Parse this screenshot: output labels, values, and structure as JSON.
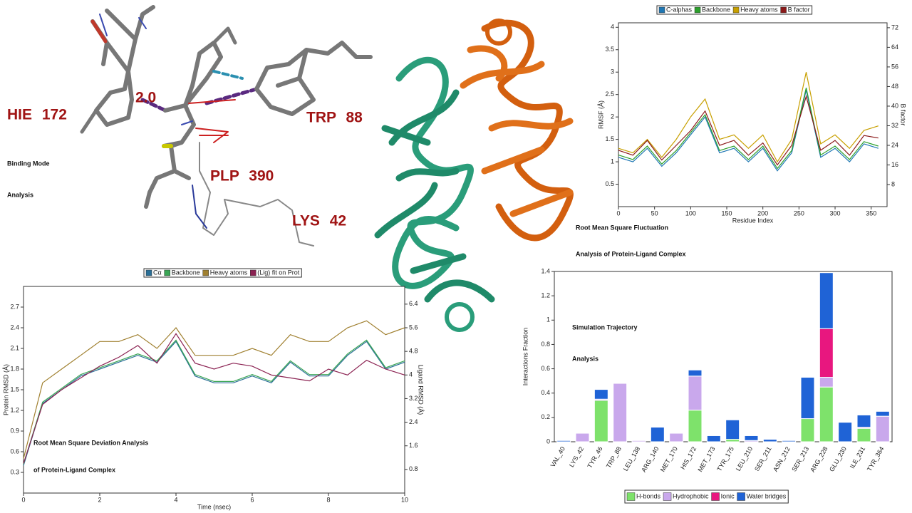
{
  "binding_mode": {
    "title": [
      "Binding Mode",
      "Analysis"
    ],
    "labels": [
      "HIE 172",
      "2.0",
      "TRP 88",
      "PLP 390",
      "LYS 42"
    ]
  },
  "chart_data": [
    {
      "type": "line",
      "title": [
        "Root Mean Square Deviation Analysis",
        "of Protein-Ligand Complex"
      ],
      "x_label": "Time (nsec)",
      "y_label": "Protein RMSD (Å)",
      "y2_label": "Ligand RMSD (Å)",
      "x": [
        0,
        0.5,
        1,
        1.5,
        2,
        2.5,
        3,
        3.5,
        4,
        4.5,
        5,
        5.5,
        6,
        6.5,
        7,
        7.5,
        8,
        8.5,
        9,
        9.5,
        10
      ],
      "xlim": [
        0,
        10
      ],
      "xticks": [
        0,
        2,
        4,
        6,
        8,
        10
      ],
      "ylim": [
        0,
        3.0
      ],
      "yticks": [
        0.3,
        0.6,
        0.9,
        1.2,
        1.5,
        1.8,
        2.1,
        2.4,
        2.7
      ],
      "y2lim": [
        0,
        7
      ],
      "y2ticks": [
        0.8,
        1.6,
        2.4,
        3.2,
        4.0,
        4.8,
        5.6,
        6.4
      ],
      "series": [
        {
          "name": "Cα",
          "color": "#2a6f97",
          "values": [
            0.4,
            1.3,
            1.5,
            1.7,
            1.8,
            1.9,
            2.0,
            1.9,
            2.2,
            1.7,
            1.6,
            1.6,
            1.7,
            1.6,
            1.9,
            1.7,
            1.7,
            2.0,
            2.2,
            1.8,
            1.9
          ]
        },
        {
          "name": "Backbone",
          "color": "#3aa655",
          "values": [
            0.42,
            1.32,
            1.52,
            1.72,
            1.82,
            1.92,
            2.02,
            1.92,
            2.22,
            1.72,
            1.62,
            1.62,
            1.72,
            1.62,
            1.92,
            1.72,
            1.72,
            2.02,
            2.22,
            1.82,
            1.92
          ]
        },
        {
          "name": "Heavy atoms",
          "color": "#a08030",
          "values": [
            0.5,
            1.6,
            1.8,
            2.0,
            2.2,
            2.2,
            2.3,
            2.1,
            2.4,
            2.0,
            2.0,
            2.0,
            2.1,
            2.0,
            2.3,
            2.2,
            2.2,
            2.4,
            2.5,
            2.3,
            2.4
          ]
        },
        {
          "name": "(Lig) fit on Prot",
          "color": "#8b2252",
          "axis": "y2",
          "values": [
            1.0,
            3.0,
            3.5,
            3.9,
            4.3,
            4.6,
            5.0,
            4.4,
            5.4,
            4.4,
            4.2,
            4.4,
            4.3,
            4.0,
            3.9,
            3.8,
            4.2,
            4.0,
            4.5,
            4.2,
            4.0
          ]
        }
      ]
    },
    {
      "type": "line",
      "title": [
        "Root Mean Square Fluctuation",
        "Analysis of Protein-Ligand Complex"
      ],
      "x_label": "Residue Index",
      "y_label": "RMSF (Å)",
      "y2_label": "B factor",
      "x": [
        0,
        20,
        40,
        60,
        80,
        100,
        120,
        140,
        160,
        180,
        200,
        220,
        240,
        260,
        280,
        300,
        320,
        340,
        360
      ],
      "xlim": [
        0,
        372
      ],
      "xticks": [
        0,
        50,
        100,
        150,
        200,
        250,
        300,
        350
      ],
      "ylim": [
        0,
        4.1
      ],
      "yticks": [
        0.5,
        1.0,
        1.5,
        2.0,
        2.5,
        3.0,
        3.5,
        4.0
      ],
      "y2lim": [
        -1,
        74
      ],
      "y2ticks": [
        8,
        16,
        24,
        32,
        40,
        48,
        56,
        64,
        72
      ],
      "series": [
        {
          "name": "C-alphas",
          "color": "#1f77b4",
          "values": [
            1.1,
            1.0,
            1.3,
            0.9,
            1.2,
            1.6,
            2.0,
            1.2,
            1.3,
            1.0,
            1.3,
            0.8,
            1.2,
            2.6,
            1.1,
            1.3,
            1.0,
            1.4,
            1.3
          ]
        },
        {
          "name": "Backbone",
          "color": "#2ca02c",
          "values": [
            1.15,
            1.05,
            1.35,
            0.95,
            1.25,
            1.65,
            2.05,
            1.25,
            1.35,
            1.05,
            1.35,
            0.85,
            1.25,
            2.65,
            1.15,
            1.35,
            1.05,
            1.45,
            1.35
          ]
        },
        {
          "name": "Heavy atoms",
          "color": "#c8a000",
          "values": [
            1.3,
            1.2,
            1.5,
            1.1,
            1.5,
            2.0,
            2.4,
            1.5,
            1.6,
            1.3,
            1.6,
            1.0,
            1.5,
            3.0,
            1.4,
            1.6,
            1.3,
            1.7,
            1.8
          ]
        },
        {
          "name": "B factor",
          "color": "#8b1a1a",
          "axis": "y2",
          "values": [
            22,
            20,
            26,
            18,
            24,
            30,
            38,
            24,
            26,
            20,
            25,
            16,
            24,
            44,
            22,
            26,
            20,
            28,
            27
          ]
        }
      ]
    },
    {
      "type": "stacked_bar",
      "title": [
        "Simulation Trajectory",
        "Analysis"
      ],
      "y_label": "Interactions Fraction",
      "categories": [
        "VAL_40",
        "LYS_42",
        "TYR_46",
        "TRP_88",
        "LEU_138",
        "ARG_140",
        "MET_170",
        "HIS_172",
        "MET_173",
        "TYR_175",
        "LEU_210",
        "SER_211",
        "ASN_212",
        "SER_213",
        "ARG_228",
        "GLU_230",
        "ILE_231",
        "TYR_364"
      ],
      "ylim": [
        0,
        1.4
      ],
      "yticks": [
        0.0,
        0.2,
        0.4,
        0.6,
        0.8,
        1.0,
        1.2,
        1.4
      ],
      "series": [
        {
          "name": "H-bonds",
          "color": "#7ee26b",
          "values": [
            0,
            0,
            0.34,
            0,
            0,
            0,
            0,
            0.26,
            0,
            0.02,
            0,
            0,
            0,
            0.19,
            0.45,
            0,
            0.11,
            0
          ]
        },
        {
          "name": "Hydrophobic",
          "color": "#c9a8ec",
          "values": [
            0,
            0.07,
            0.01,
            0.48,
            0.01,
            0,
            0.07,
            0.28,
            0,
            0,
            0.01,
            0,
            0,
            0,
            0.08,
            0,
            0.01,
            0.21
          ]
        },
        {
          "name": "Ionic",
          "color": "#e8177f",
          "values": [
            0,
            0,
            0,
            0,
            0,
            0,
            0,
            0,
            0,
            0,
            0,
            0,
            0,
            0,
            0.4,
            0,
            0,
            0
          ]
        },
        {
          "name": "Water bridges",
          "color": "#1f63d6",
          "values": [
            0.01,
            0,
            0.08,
            0,
            0,
            0.12,
            0,
            0.05,
            0.05,
            0.16,
            0.04,
            0.02,
            0.01,
            0.34,
            0.46,
            0.16,
            0.1,
            0.04
          ]
        }
      ]
    }
  ]
}
